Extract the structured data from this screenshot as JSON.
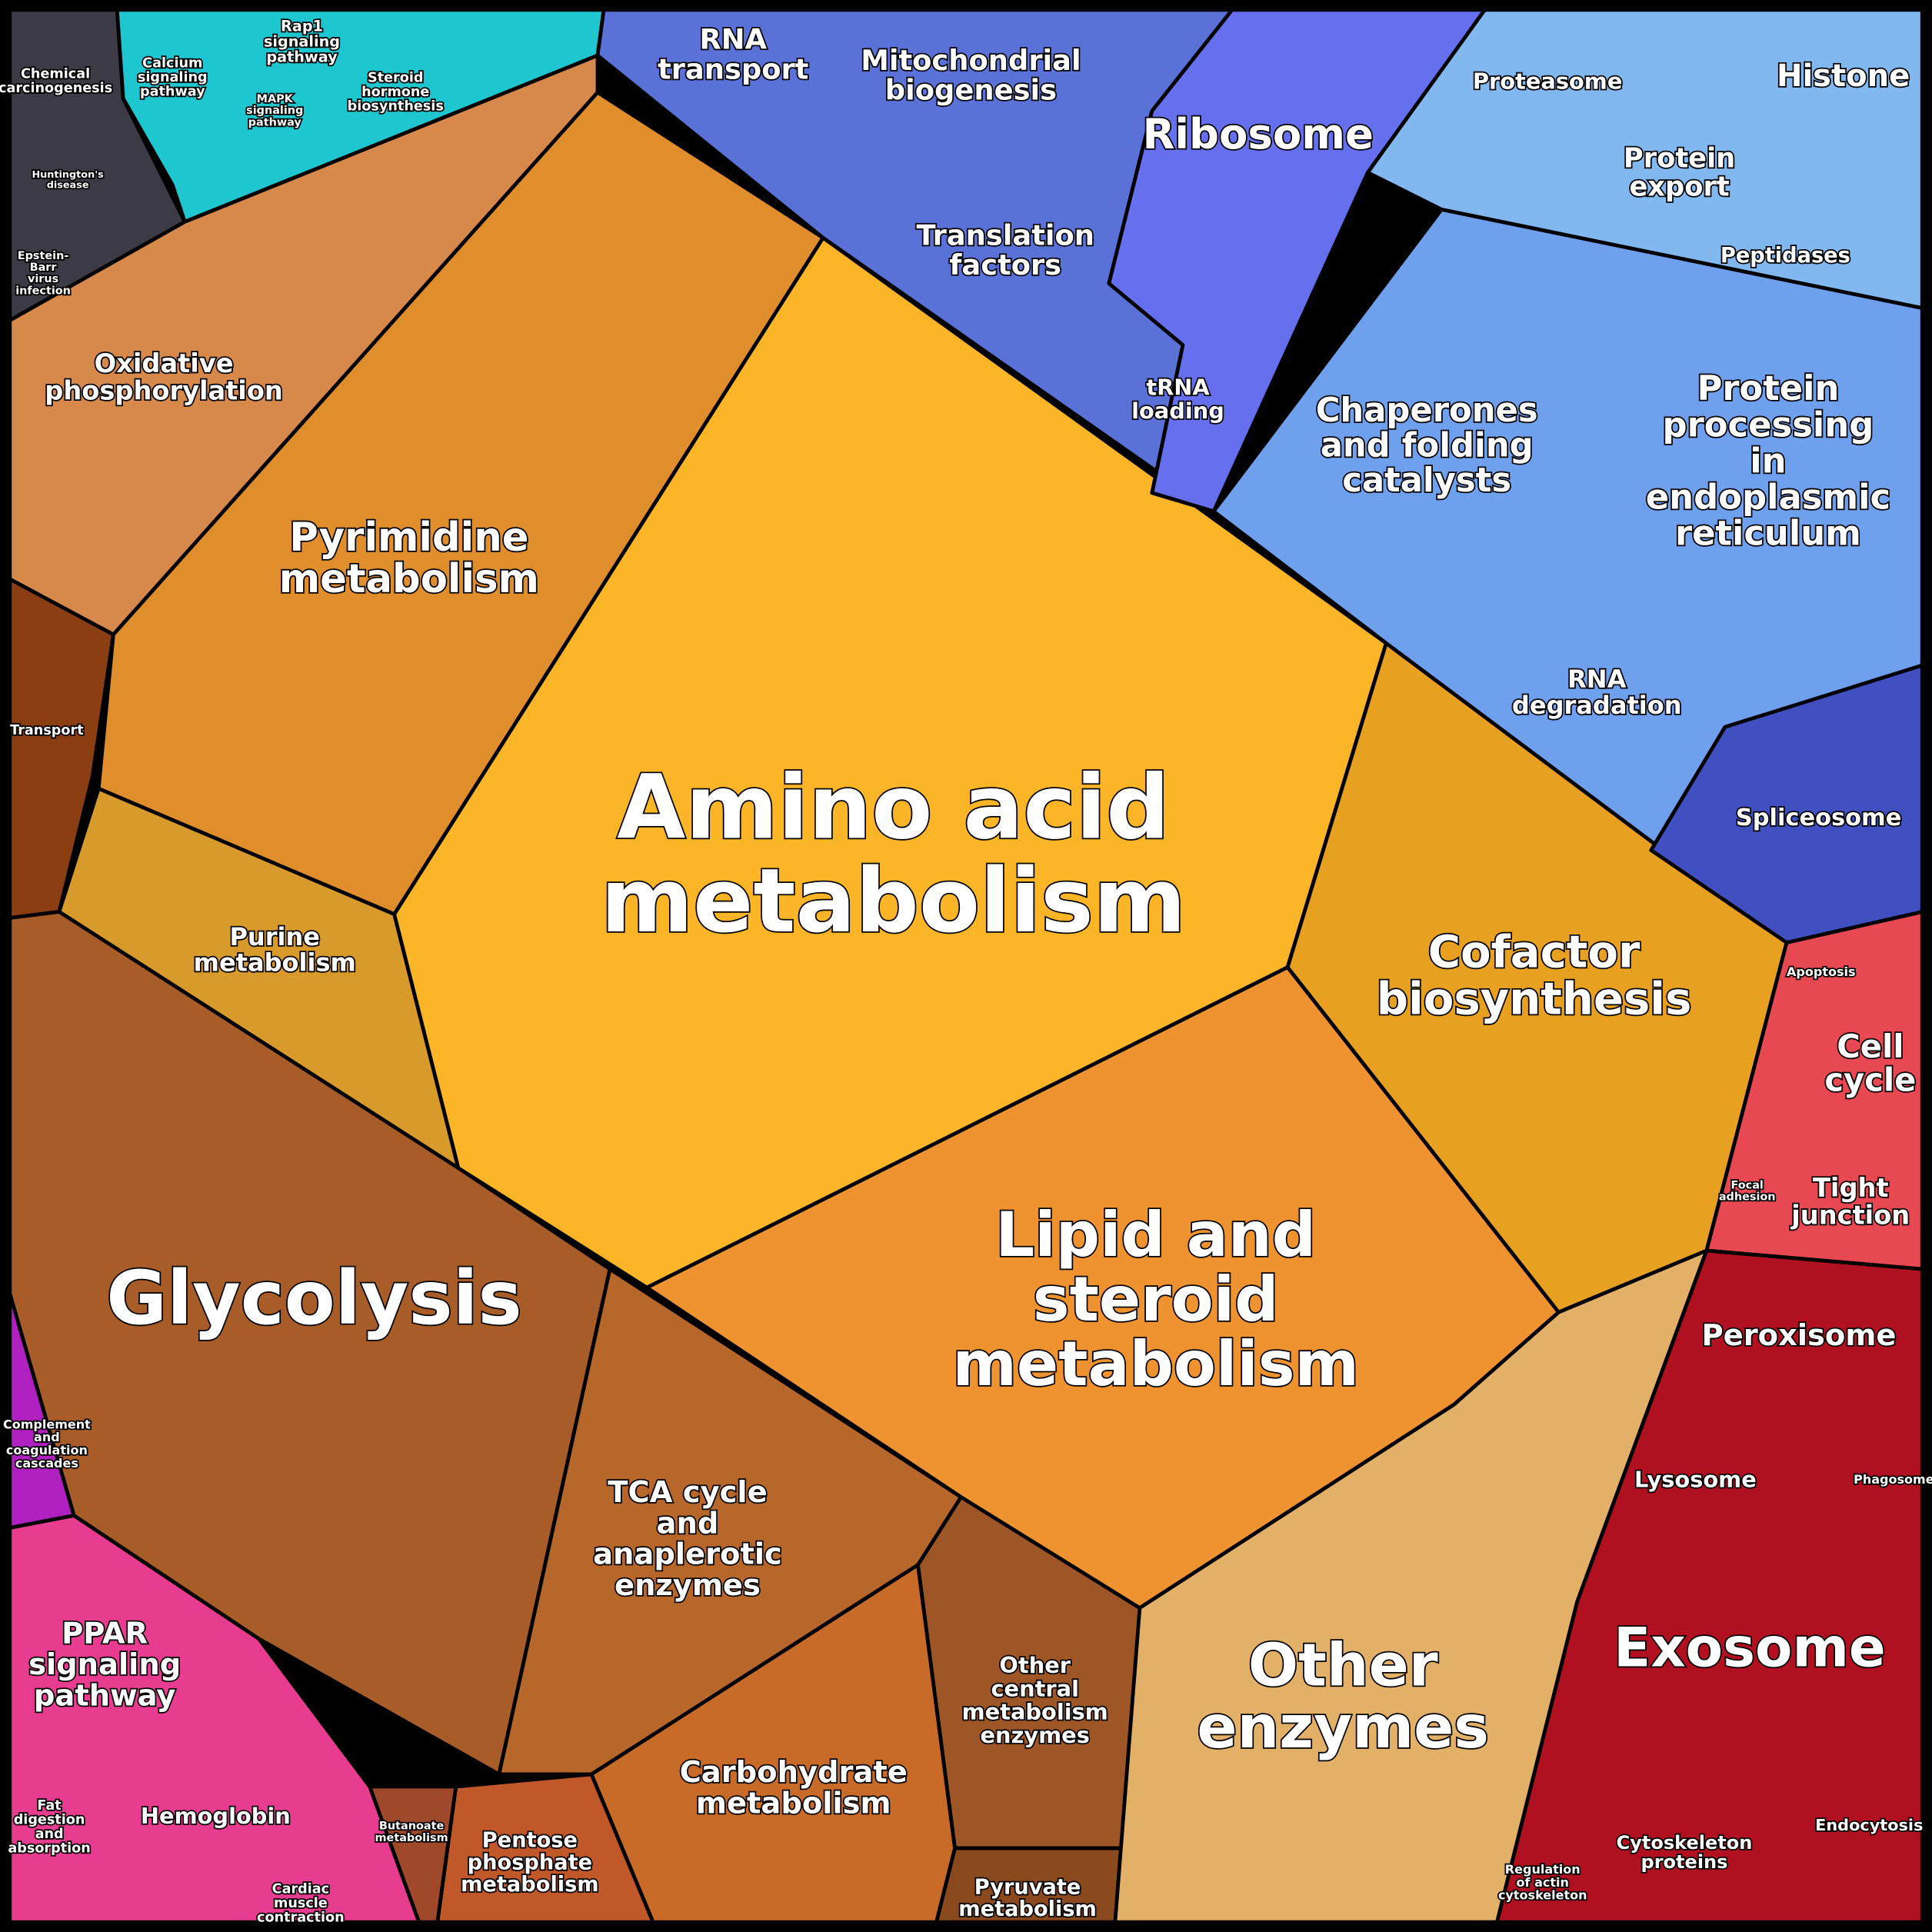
{
  "regions": [
    {
      "label": [
        "Amino acid",
        "metabolism"
      ]
    },
    {
      "label": [
        "Glycolysis"
      ]
    },
    {
      "label": [
        "Lipid and",
        "steroid",
        "metabolism"
      ]
    },
    {
      "label": [
        "Cofactor",
        "biosynthesis"
      ]
    },
    {
      "label": [
        "Pyrimidine",
        "metabolism"
      ]
    },
    {
      "label": [
        "Oxidative",
        "phosphorylation"
      ]
    },
    {
      "label": [
        "Purine",
        "metabolism"
      ]
    },
    {
      "label": [
        "Transport"
      ]
    },
    {
      "label": [
        "TCA cycle",
        "and",
        "anaplerotic",
        "enzymes"
      ]
    },
    {
      "label": [
        "Carbohydrate",
        "metabolism"
      ]
    },
    {
      "label": [
        "Other",
        "central",
        "metabolism",
        "enzymes"
      ]
    },
    {
      "label": [
        "Pyruvate",
        "metabolism"
      ]
    },
    {
      "label": [
        "Pentose",
        "phosphate",
        "metabolism"
      ]
    },
    {
      "label": [
        "Butanoate",
        "metabolism"
      ]
    },
    {
      "label": [
        "Other",
        "enzymes"
      ]
    },
    {
      "label": [
        "Exosome"
      ]
    },
    {
      "label": [
        "Peroxisome"
      ]
    },
    {
      "label": [
        "Lysosome"
      ]
    },
    {
      "label": [
        "Phagosome"
      ]
    },
    {
      "label": [
        "Endocytosis"
      ]
    },
    {
      "label": [
        "Cytoskeleton",
        "proteins"
      ]
    },
    {
      "label": [
        "Regulation",
        "of actin",
        "cytoskeleton"
      ]
    },
    {
      "label": [
        "Cell",
        "cycle"
      ]
    },
    {
      "label": [
        "Tight",
        "junction"
      ]
    },
    {
      "label": [
        "Apoptosis"
      ]
    },
    {
      "label": [
        "Focal",
        "adhesion"
      ]
    },
    {
      "label": [
        "Spliceosome"
      ]
    },
    {
      "label": [
        "RNA",
        "degradation"
      ]
    },
    {
      "label": [
        "Protein",
        "processing",
        "in",
        "endoplasmic",
        "reticulum"
      ]
    },
    {
      "label": [
        "Chaperones",
        "and folding",
        "catalysts"
      ]
    },
    {
      "label": [
        "Peptidases"
      ]
    },
    {
      "label": [
        "Protein",
        "export"
      ]
    },
    {
      "label": [
        "Proteasome"
      ]
    },
    {
      "label": [
        "Histone"
      ]
    },
    {
      "label": [
        "Ribosome"
      ]
    },
    {
      "label": [
        "Translation",
        "factors"
      ]
    },
    {
      "label": [
        "tRNA",
        "loading"
      ]
    },
    {
      "label": [
        "Mitochondrial",
        "biogenesis"
      ]
    },
    {
      "label": [
        "RNA",
        "transport"
      ]
    },
    {
      "label": [
        "Calcium",
        "signaling",
        "pathway"
      ]
    },
    {
      "label": [
        "Rap1",
        "signaling",
        "pathway"
      ]
    },
    {
      "label": [
        "Steroid",
        "hormone",
        "biosynthesis"
      ]
    },
    {
      "label": [
        "Chemical",
        "carcinogenesis"
      ]
    },
    {
      "label": [
        "Huntington's",
        "disease"
      ]
    },
    {
      "label": [
        "Epstein-",
        "Barr",
        "virus",
        "infection"
      ]
    },
    {
      "label": [
        "PPAR",
        "signaling",
        "pathway"
      ]
    },
    {
      "label": [
        "Hemoglobin"
      ]
    },
    {
      "label": [
        "Complement",
        "and",
        "coagulation",
        "cascades"
      ]
    },
    {
      "label": [
        "Fat",
        "digestion",
        "and",
        "absorption"
      ]
    },
    {
      "label": [
        "Cardiac",
        "muscle",
        "contraction"
      ]
    },
    {
      "label": [
        "MAPK",
        "signaling",
        "pathway"
      ]
    }
  ]
}
